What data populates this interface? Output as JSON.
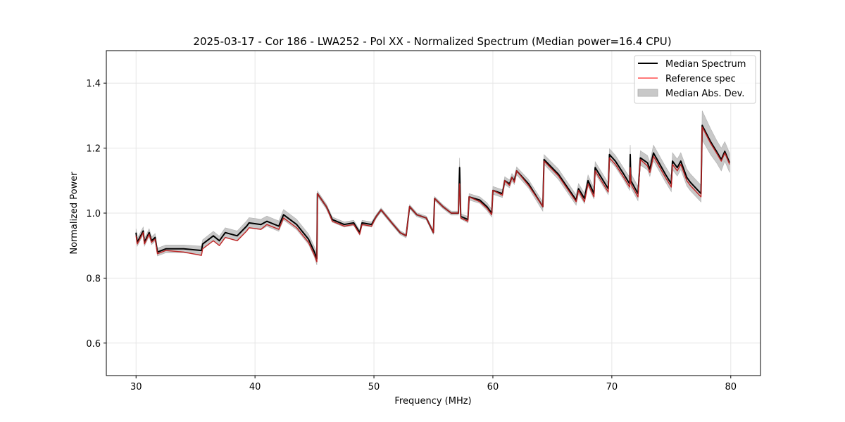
{
  "chart_data": {
    "type": "line",
    "title": "2025-03-17 - Cor 186 - LWA252 - Pol XX - Normalized Spectrum (Median power=16.4 CPU)",
    "xlabel": "Frequency (MHz)",
    "ylabel": "Normalized Power",
    "xlim": [
      27.5,
      82.5
    ],
    "ylim": [
      0.5,
      1.5
    ],
    "xticks": [
      30,
      40,
      50,
      60,
      70,
      80
    ],
    "xtick_labels": [
      "30",
      "40",
      "50",
      "60",
      "70",
      "80"
    ],
    "yticks": [
      0.6,
      0.8,
      1.0,
      1.2,
      1.4
    ],
    "ytick_labels": [
      "0.6",
      "0.8",
      "1.0",
      "1.2",
      "1.4"
    ],
    "grid": true,
    "legend_position": "top-right",
    "legend": [
      {
        "label": "Median Spectrum",
        "kind": "line",
        "color": "#000000"
      },
      {
        "label": "Reference spec",
        "kind": "line",
        "color": "#ff4d4d"
      },
      {
        "label": "Median Abs. Dev.",
        "kind": "patch",
        "color": "#c8c8c8"
      }
    ],
    "x": [
      30.0,
      30.1,
      30.6,
      30.7,
      31.1,
      31.3,
      31.6,
      31.8,
      32.5,
      34.0,
      35.5,
      35.6,
      36.5,
      37.0,
      37.5,
      38.5,
      39.3,
      39.5,
      40.5,
      41.0,
      42.0,
      42.4,
      43.5,
      44.5,
      45.0,
      45.2,
      45.25,
      46.0,
      46.5,
      47.5,
      48.3,
      48.8,
      49.0,
      49.8,
      50.2,
      50.6,
      51.5,
      52.2,
      52.7,
      53.0,
      53.6,
      54.4,
      55.0,
      55.1,
      55.8,
      56.5,
      57.1,
      57.2,
      57.3,
      57.9,
      58.0,
      58.9,
      59.5,
      59.9,
      60.0,
      60.8,
      61.0,
      61.4,
      61.6,
      61.8,
      62.0,
      63.0,
      64.2,
      64.3,
      65.5,
      67.0,
      67.2,
      67.7,
      68.0,
      68.5,
      68.6,
      69.7,
      69.8,
      70.3,
      71.0,
      71.5,
      71.55,
      71.6,
      72.2,
      72.4,
      73.0,
      73.2,
      73.5,
      74.5,
      75.0,
      75.1,
      75.5,
      75.8,
      76.3,
      76.6,
      77.5,
      77.6,
      78.3,
      78.8,
      79.2,
      79.5,
      79.9
    ],
    "series": [
      {
        "name": "Median Spectrum",
        "color": "#000000",
        "values": [
          0.94,
          0.91,
          0.945,
          0.91,
          0.94,
          0.915,
          0.925,
          0.88,
          0.89,
          0.89,
          0.885,
          0.905,
          0.93,
          0.915,
          0.94,
          0.93,
          0.96,
          0.97,
          0.965,
          0.975,
          0.96,
          0.995,
          0.965,
          0.92,
          0.88,
          0.86,
          1.06,
          1.02,
          0.98,
          0.965,
          0.97,
          0.94,
          0.97,
          0.965,
          0.99,
          1.01,
          0.97,
          0.94,
          0.93,
          1.02,
          0.995,
          0.985,
          0.94,
          1.045,
          1.02,
          1.0,
          1.0,
          1.14,
          0.99,
          0.98,
          1.05,
          1.04,
          1.02,
          1.0,
          1.07,
          1.06,
          1.1,
          1.09,
          1.11,
          1.1,
          1.13,
          1.09,
          1.02,
          1.165,
          1.12,
          1.04,
          1.075,
          1.045,
          1.1,
          1.06,
          1.14,
          1.075,
          1.18,
          1.16,
          1.12,
          1.09,
          1.18,
          1.1,
          1.06,
          1.17,
          1.155,
          1.135,
          1.185,
          1.12,
          1.09,
          1.16,
          1.14,
          1.16,
          1.11,
          1.095,
          1.06,
          1.27,
          1.22,
          1.19,
          1.165,
          1.19,
          1.155
        ]
      },
      {
        "name": "Reference spec",
        "color": "#ff4d4d",
        "values": [
          0.93,
          0.905,
          0.94,
          0.905,
          0.935,
          0.91,
          0.92,
          0.875,
          0.885,
          0.88,
          0.87,
          0.89,
          0.915,
          0.9,
          0.925,
          0.915,
          0.945,
          0.955,
          0.95,
          0.965,
          0.95,
          0.985,
          0.955,
          0.91,
          0.87,
          0.85,
          1.06,
          1.02,
          0.975,
          0.96,
          0.965,
          0.935,
          0.965,
          0.96,
          0.99,
          1.01,
          0.97,
          0.94,
          0.93,
          1.02,
          0.995,
          0.985,
          0.94,
          1.045,
          1.02,
          1.0,
          1.0,
          1.09,
          0.985,
          0.975,
          1.05,
          1.035,
          1.015,
          0.995,
          1.07,
          1.055,
          1.1,
          1.085,
          1.11,
          1.095,
          1.13,
          1.085,
          1.02,
          1.16,
          1.115,
          1.035,
          1.07,
          1.035,
          1.09,
          1.05,
          1.13,
          1.065,
          1.17,
          1.15,
          1.11,
          1.08,
          1.14,
          1.09,
          1.05,
          1.165,
          1.145,
          1.125,
          1.175,
          1.11,
          1.08,
          1.15,
          1.13,
          1.15,
          1.1,
          1.085,
          1.05,
          1.265,
          1.215,
          1.185,
          1.16,
          1.185,
          1.15
        ]
      },
      {
        "name": "Median Abs. Dev.",
        "color": "#c8c8c8",
        "values": [
          0.012,
          0.012,
          0.012,
          0.012,
          0.012,
          0.012,
          0.012,
          0.012,
          0.012,
          0.012,
          0.013,
          0.013,
          0.014,
          0.014,
          0.015,
          0.015,
          0.016,
          0.016,
          0.016,
          0.016,
          0.016,
          0.016,
          0.016,
          0.016,
          0.016,
          0.02,
          0.008,
          0.008,
          0.008,
          0.008,
          0.008,
          0.008,
          0.008,
          0.008,
          0.006,
          0.006,
          0.006,
          0.006,
          0.006,
          0.006,
          0.006,
          0.006,
          0.006,
          0.006,
          0.006,
          0.006,
          0.006,
          0.03,
          0.008,
          0.01,
          0.01,
          0.01,
          0.012,
          0.012,
          0.012,
          0.012,
          0.012,
          0.012,
          0.012,
          0.012,
          0.012,
          0.013,
          0.014,
          0.015,
          0.016,
          0.016,
          0.016,
          0.016,
          0.017,
          0.017,
          0.018,
          0.018,
          0.018,
          0.018,
          0.018,
          0.02,
          0.03,
          0.022,
          0.022,
          0.022,
          0.022,
          0.022,
          0.024,
          0.024,
          0.024,
          0.026,
          0.026,
          0.026,
          0.026,
          0.026,
          0.026,
          0.045,
          0.04,
          0.035,
          0.035,
          0.03,
          0.03
        ]
      }
    ]
  }
}
